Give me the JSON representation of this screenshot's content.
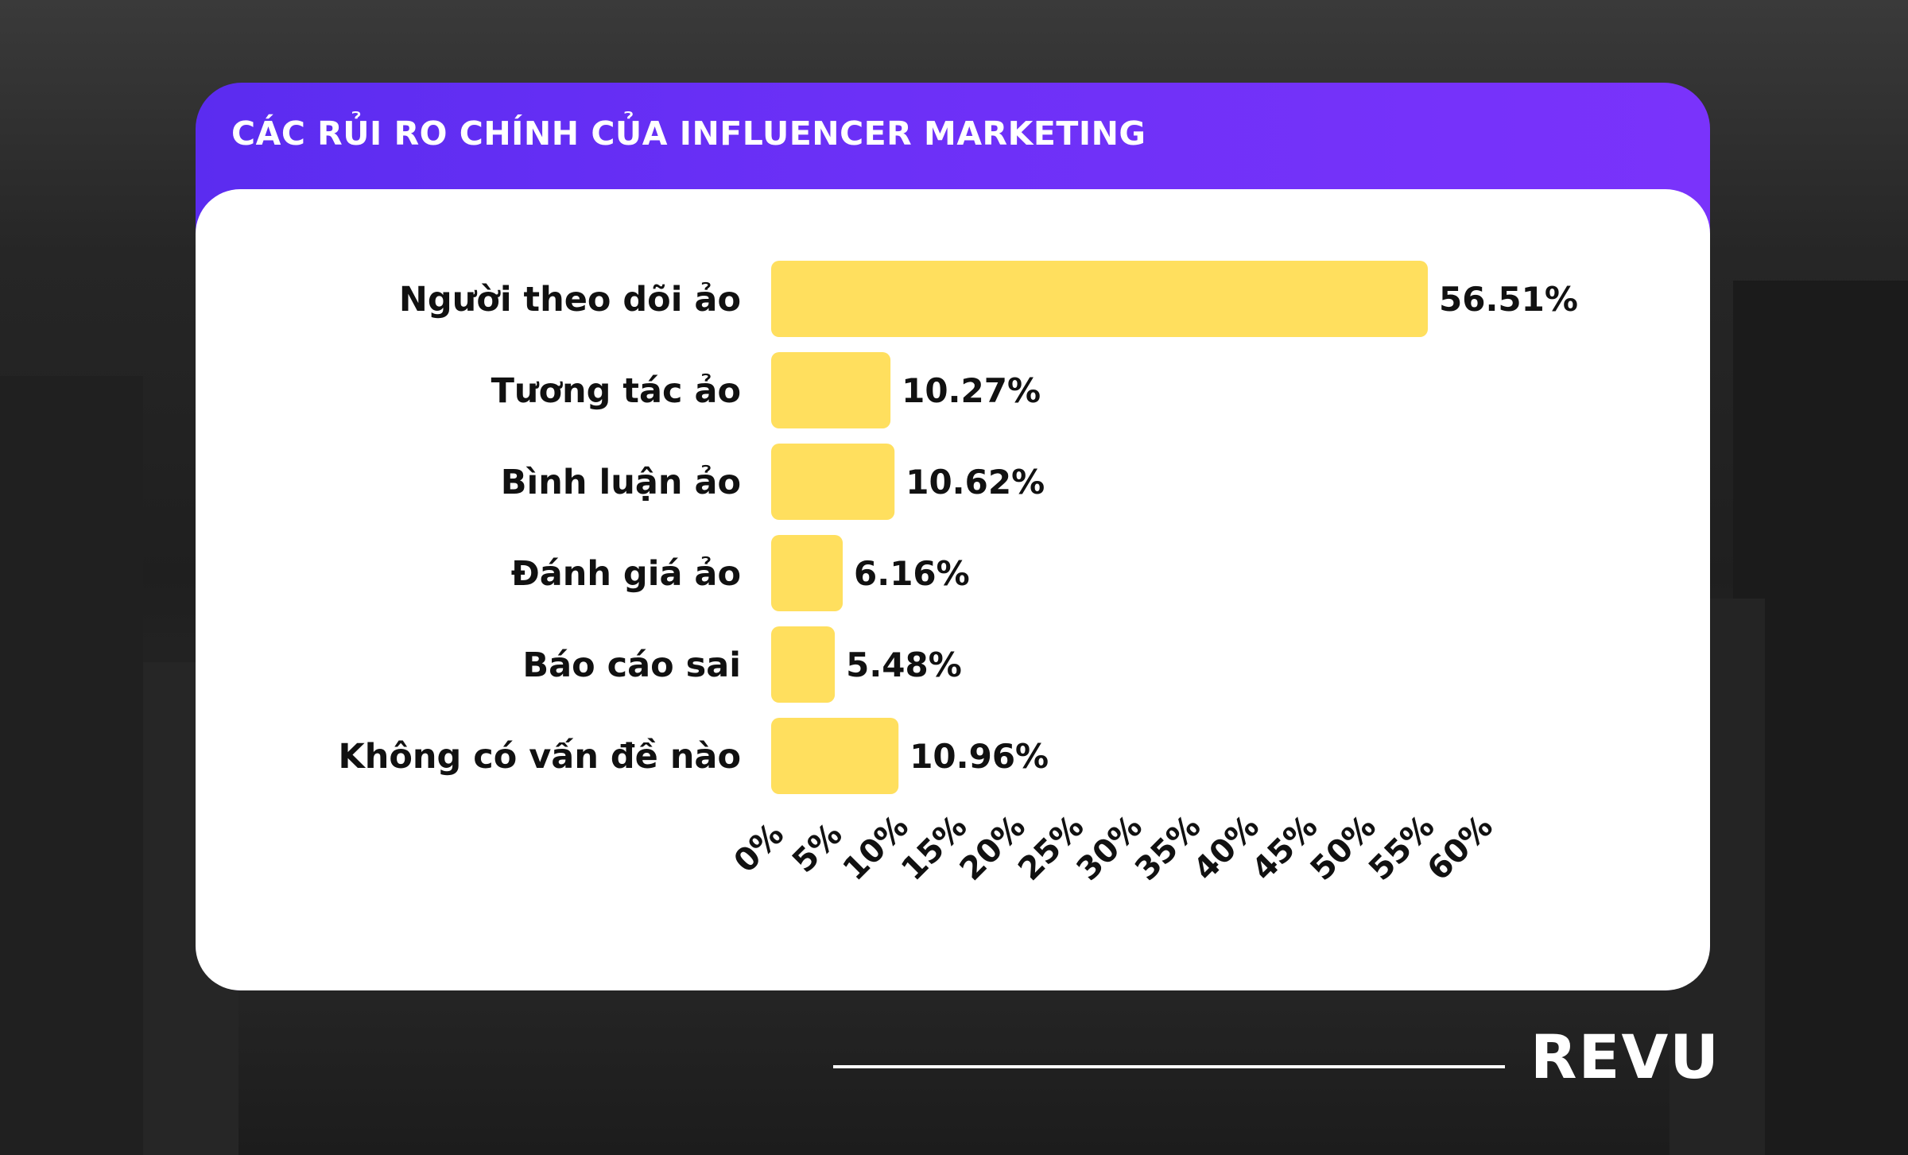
{
  "header": {
    "title": "CÁC RỦI RO CHÍNH CỦA INFLUENCER MARKETING"
  },
  "brand": {
    "logo_text": "REVU"
  },
  "colors": {
    "accent": "#6c30f7",
    "bar": "#ffdf5e",
    "text": "#111111",
    "card": "#ffffff"
  },
  "chart_data": {
    "type": "bar",
    "orientation": "horizontal",
    "categories": [
      "Người theo dõi ảo",
      "Tương tác ảo",
      "Bình luận ảo",
      "Đánh giá ảo",
      "Báo cáo sai",
      "Không có vấn đề nào"
    ],
    "values": [
      56.51,
      10.27,
      10.62,
      6.16,
      5.48,
      10.96
    ],
    "data_labels": [
      "56.51%",
      "10.27%",
      "10.62%",
      "6.16%",
      "5.48%",
      "10.96%"
    ],
    "x_ticks": [
      "0%",
      "5%",
      "10%",
      "15%",
      "20%",
      "25%",
      "30%",
      "35%",
      "40%",
      "45%",
      "50%",
      "55%",
      "60%"
    ],
    "xlim": [
      0,
      60
    ],
    "grid": false
  }
}
